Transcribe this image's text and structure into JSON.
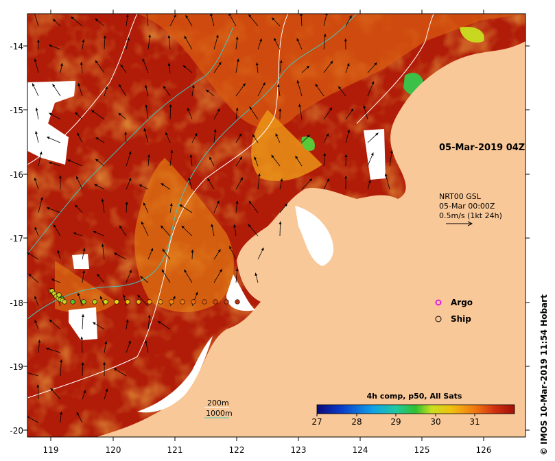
{
  "map": {
    "date_label": "05-Mar-2019 04Z",
    "currents": {
      "source": "NRT00 GSL",
      "time": "05-Mar 00:00Z",
      "scale": "0.5m/s (1kt 24h)"
    },
    "colorbar": {
      "title": "4h comp, p50, All Sats",
      "ticks": [
        "27",
        "28",
        "29",
        "30",
        "31"
      ],
      "range": [
        27,
        32
      ]
    },
    "legend": {
      "argo_label": "Argo",
      "ship_label": "Ship"
    },
    "contours": {
      "label_200": "200m",
      "label_1000": "1000m",
      "color_200": "#ffffff",
      "color_1000": "#40c8c0"
    },
    "credit": "© IMOS 10-Mar-2019 11:54 Hobart",
    "x_ticks": [
      "119",
      "120",
      "121",
      "122",
      "123",
      "124",
      "125",
      "126"
    ],
    "y_ticks": [
      "-14",
      "-15",
      "-16",
      "-17",
      "-18",
      "-19",
      "-20"
    ],
    "colors": {
      "land": "#f9c898",
      "warm": "#b01c08",
      "mid": "#d85a10",
      "orange": "#ee9a18"
    }
  }
}
